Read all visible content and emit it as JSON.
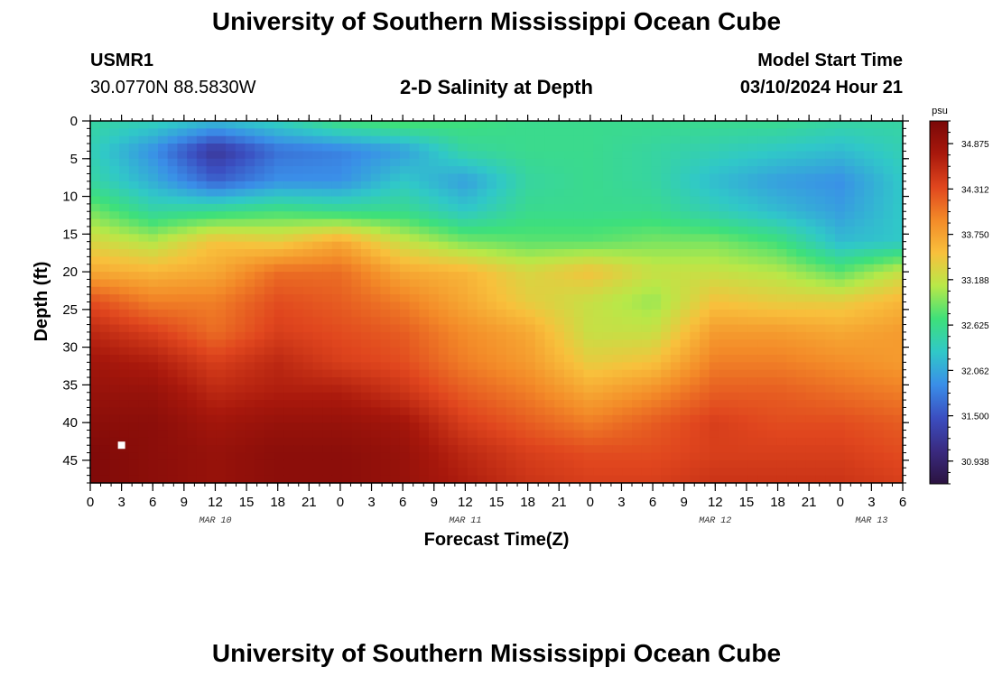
{
  "header": {
    "title": "University of Southern Mississippi Ocean Cube",
    "station_id": "USMR1",
    "coords": "30.0770N  88.5830W",
    "plot_title": "2-D Salinity at Depth",
    "model_label": "Model Start Time",
    "model_time": "03/10/2024 Hour 21"
  },
  "footer": {
    "title": "University of Southern Mississippi Ocean Cube"
  },
  "chart_data": {
    "type": "heatmap",
    "title": "2-D Salinity at Depth",
    "xlabel": "Forecast Time(Z)",
    "ylabel": "Depth (ft)",
    "x_range_hours": [
      0,
      78
    ],
    "ylim": [
      0,
      48
    ],
    "x_ticks": [
      {
        "h": 0,
        "label": "0"
      },
      {
        "h": 3,
        "label": "3"
      },
      {
        "h": 6,
        "label": "6"
      },
      {
        "h": 9,
        "label": "9"
      },
      {
        "h": 12,
        "label": "12"
      },
      {
        "h": 15,
        "label": "15"
      },
      {
        "h": 18,
        "label": "18"
      },
      {
        "h": 21,
        "label": "21"
      },
      {
        "h": 24,
        "label": "0"
      },
      {
        "h": 27,
        "label": "3"
      },
      {
        "h": 30,
        "label": "6"
      },
      {
        "h": 33,
        "label": "9"
      },
      {
        "h": 36,
        "label": "12"
      },
      {
        "h": 39,
        "label": "15"
      },
      {
        "h": 42,
        "label": "18"
      },
      {
        "h": 45,
        "label": "21"
      },
      {
        "h": 48,
        "label": "0"
      },
      {
        "h": 51,
        "label": "3"
      },
      {
        "h": 54,
        "label": "6"
      },
      {
        "h": 57,
        "label": "9"
      },
      {
        "h": 60,
        "label": "12"
      },
      {
        "h": 63,
        "label": "15"
      },
      {
        "h": 66,
        "label": "18"
      },
      {
        "h": 69,
        "label": "21"
      },
      {
        "h": 72,
        "label": "0"
      },
      {
        "h": 75,
        "label": "3"
      },
      {
        "h": 78,
        "label": "6"
      }
    ],
    "date_labels": [
      {
        "h": 12,
        "label": "MAR 10"
      },
      {
        "h": 36,
        "label": "MAR 11"
      },
      {
        "h": 60,
        "label": "MAR 12"
      },
      {
        "h": 75,
        "label": "MAR 13"
      }
    ],
    "y_ticks": [
      0,
      5,
      10,
      15,
      20,
      25,
      30,
      35,
      40,
      45
    ],
    "marker": {
      "h": 3,
      "depth": 43
    },
    "colorbar": {
      "unit": "psu",
      "min": 30.656,
      "max": 35.156,
      "tick_values": [
        34.875,
        34.312,
        33.75,
        33.188,
        32.625,
        32.062,
        31.5,
        30.938
      ],
      "tick_labels": [
        "34.875",
        "34.312",
        "33.750",
        "33.188",
        "32.625",
        "32.062",
        "31.500",
        "30.938"
      ],
      "stops": [
        "#2b1340",
        "#3a2a80",
        "#3b4ec0",
        "#3a8ee8",
        "#30c8c8",
        "#3ee07a",
        "#b8e848",
        "#f8c03c",
        "#f38a28",
        "#e0461e",
        "#a8180c",
        "#7a0808"
      ]
    },
    "grid": {
      "hours": [
        0,
        6,
        12,
        18,
        24,
        30,
        36,
        42,
        48,
        54,
        60,
        66,
        72,
        78
      ],
      "depths": [
        0,
        4,
        8,
        12,
        16,
        20,
        24,
        28,
        32,
        36,
        40,
        44,
        48
      ],
      "values": [
        [
          32.5,
          32.4,
          32.2,
          32.4,
          32.7,
          32.8,
          32.7,
          32.6,
          32.6,
          32.6,
          32.6,
          32.6,
          32.5,
          32.5
        ],
        [
          32.4,
          31.9,
          31.2,
          31.7,
          31.8,
          32.0,
          32.5,
          32.6,
          32.6,
          32.5,
          32.4,
          32.3,
          32.2,
          32.4
        ],
        [
          32.5,
          32.1,
          31.6,
          31.9,
          31.9,
          32.3,
          32.0,
          32.5,
          32.6,
          32.5,
          32.2,
          32.0,
          31.9,
          32.3
        ],
        [
          32.9,
          32.5,
          32.6,
          32.7,
          32.6,
          32.6,
          32.3,
          32.6,
          32.6,
          32.6,
          32.4,
          32.2,
          32.0,
          32.3
        ],
        [
          33.3,
          33.1,
          33.5,
          33.4,
          33.7,
          33.2,
          32.9,
          32.8,
          32.8,
          32.9,
          32.9,
          32.7,
          32.2,
          32.3
        ],
        [
          33.7,
          33.6,
          33.7,
          34.1,
          34.1,
          33.7,
          33.6,
          33.3,
          33.5,
          33.2,
          33.2,
          33.1,
          32.8,
          33.2
        ],
        [
          34.3,
          34.0,
          34.0,
          34.3,
          34.2,
          34.0,
          33.7,
          33.4,
          33.2,
          33.0,
          33.5,
          33.4,
          33.4,
          33.6
        ],
        [
          34.6,
          34.4,
          34.1,
          34.4,
          34.3,
          34.2,
          33.9,
          33.7,
          33.2,
          33.2,
          33.8,
          33.8,
          33.7,
          33.8
        ],
        [
          34.8,
          34.7,
          34.4,
          34.6,
          34.4,
          34.3,
          34.0,
          33.8,
          33.4,
          33.5,
          34.0,
          34.0,
          33.9,
          33.8
        ],
        [
          34.9,
          34.9,
          34.6,
          34.7,
          34.7,
          34.5,
          34.2,
          34.0,
          33.7,
          33.9,
          34.2,
          34.2,
          34.1,
          34.0
        ],
        [
          35.0,
          35.0,
          34.8,
          34.9,
          34.9,
          34.8,
          34.4,
          34.2,
          34.0,
          34.2,
          34.4,
          34.3,
          34.3,
          34.2
        ],
        [
          35.1,
          35.0,
          34.9,
          35.0,
          35.0,
          34.9,
          34.6,
          34.4,
          34.3,
          34.3,
          34.4,
          34.4,
          34.4,
          34.3
        ],
        [
          35.1,
          35.0,
          34.9,
          35.0,
          35.0,
          34.9,
          34.7,
          34.5,
          34.4,
          34.4,
          34.5,
          34.5,
          34.5,
          34.4
        ]
      ]
    }
  }
}
